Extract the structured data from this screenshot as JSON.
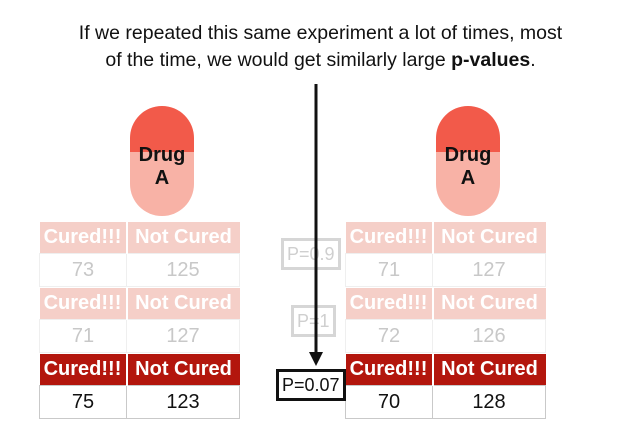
{
  "caption": {
    "line1": "If we repeated this same experiment a lot of times, most",
    "line2_prefix": "of the time, we would get similarly large ",
    "line2_bold": "p-values",
    "line2_suffix": "."
  },
  "pills": [
    {
      "line1": "Drug",
      "line2": "A"
    },
    {
      "line1": "Drug",
      "line2": "A"
    }
  ],
  "headers": {
    "cured": "Cured!!!",
    "not_cured": "Not Cured"
  },
  "experiments": [
    {
      "left": {
        "cured": "73",
        "not_cured": "125"
      },
      "right": {
        "cured": "71",
        "not_cured": "127"
      },
      "p_value": "P=0.9"
    },
    {
      "left": {
        "cured": "71",
        "not_cured": "127"
      },
      "right": {
        "cured": "72",
        "not_cured": "126"
      },
      "p_value": "P=1"
    },
    {
      "left": {
        "cured": "75",
        "not_cured": "123"
      },
      "right": {
        "cured": "70",
        "not_cured": "128"
      },
      "p_value": "P=0.07"
    }
  ],
  "colors": {
    "pill_top": "#f25a4a",
    "pill_bottom": "#f8b2a6",
    "header_strong": "#b3160d",
    "header_faded": "#f5cfc8"
  }
}
